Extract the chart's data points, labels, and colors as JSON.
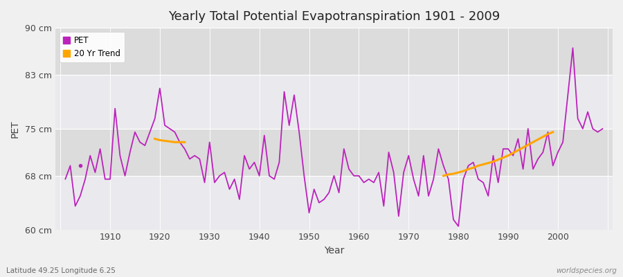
{
  "title": "Yearly Total Potential Evapotranspiration 1901 - 2009",
  "ylabel": "PET",
  "xlabel": "Year",
  "footnote_left": "Latitude 49.25 Longitude 6.25",
  "footnote_right": "worldspecies.org",
  "ylim": [
    60,
    90
  ],
  "yticks": [
    60,
    68,
    75,
    83,
    90
  ],
  "ytick_labels": [
    "60 cm",
    "68 cm",
    "75 cm",
    "83 cm",
    "90 cm"
  ],
  "pet_color": "#BB22BB",
  "trend_color": "#FFA500",
  "bg_color": "#F0F0F0",
  "plot_bg": "#F5F5F5",
  "band_dark": "#DCDCDC",
  "band_light": "#EAEAEE",
  "years": [
    1901,
    1902,
    1903,
    1904,
    1905,
    1906,
    1907,
    1908,
    1909,
    1910,
    1911,
    1912,
    1913,
    1914,
    1915,
    1916,
    1917,
    1918,
    1919,
    1920,
    1921,
    1922,
    1923,
    1924,
    1925,
    1926,
    1927,
    1928,
    1929,
    1930,
    1931,
    1932,
    1933,
    1934,
    1935,
    1936,
    1937,
    1938,
    1939,
    1940,
    1941,
    1942,
    1943,
    1944,
    1945,
    1946,
    1947,
    1948,
    1949,
    1950,
    1951,
    1952,
    1953,
    1954,
    1955,
    1956,
    1957,
    1958,
    1959,
    1960,
    1961,
    1962,
    1963,
    1964,
    1965,
    1966,
    1967,
    1968,
    1969,
    1970,
    1971,
    1972,
    1973,
    1974,
    1975,
    1976,
    1977,
    1978,
    1979,
    1980,
    1981,
    1982,
    1983,
    1984,
    1985,
    1986,
    1987,
    1988,
    1989,
    1990,
    1991,
    1992,
    1993,
    1994,
    1995,
    1996,
    1997,
    1998,
    1999,
    2000,
    2001,
    2002,
    2003,
    2004,
    2005,
    2006,
    2007,
    2008,
    2009
  ],
  "pet_values": [
    67.5,
    69.5,
    63.5,
    65.0,
    67.5,
    71.0,
    68.5,
    72.0,
    67.5,
    67.5,
    78.0,
    71.0,
    68.0,
    71.5,
    74.5,
    73.0,
    72.5,
    74.5,
    76.5,
    81.0,
    75.5,
    75.0,
    74.5,
    73.0,
    72.0,
    70.5,
    71.0,
    70.5,
    67.0,
    73.0,
    67.0,
    68.0,
    68.5,
    66.0,
    67.5,
    64.5,
    71.0,
    69.0,
    70.0,
    68.0,
    74.0,
    68.0,
    67.5,
    70.0,
    80.5,
    75.5,
    80.0,
    74.5,
    68.0,
    62.5,
    66.0,
    64.0,
    64.5,
    65.5,
    68.0,
    65.5,
    72.0,
    69.0,
    68.0,
    68.0,
    67.0,
    67.5,
    67.0,
    68.5,
    63.5,
    71.5,
    68.5,
    62.0,
    68.5,
    71.0,
    67.5,
    65.0,
    71.0,
    65.0,
    67.5,
    72.0,
    69.5,
    67.5,
    61.5,
    60.5,
    67.5,
    69.5,
    70.0,
    67.5,
    67.0,
    65.0,
    71.0,
    67.0,
    72.0,
    72.0,
    71.0,
    73.5,
    69.0,
    75.0,
    69.0,
    70.5,
    71.5,
    74.5,
    69.5,
    71.5,
    73.0,
    80.0,
    87.0,
    76.5,
    75.0,
    77.5,
    75.0,
    74.5,
    75.0
  ],
  "isolated_dot_year": 1904,
  "isolated_dot_val": 69.5,
  "trend_seg1_years": [
    1919,
    1920,
    1921,
    1922,
    1923,
    1924,
    1925
  ],
  "trend_seg1_vals": [
    73.5,
    73.3,
    73.2,
    73.1,
    73.0,
    73.0,
    73.0
  ],
  "trend_seg2_years": [
    1977,
    1978,
    1979,
    1980,
    1981,
    1982,
    1983,
    1984,
    1985,
    1986,
    1987,
    1988,
    1989,
    1990,
    1991,
    1992,
    1993,
    1994,
    1995,
    1996,
    1997,
    1998,
    1999
  ],
  "trend_seg2_vals": [
    68.0,
    68.2,
    68.3,
    68.5,
    68.7,
    69.0,
    69.2,
    69.5,
    69.7,
    69.9,
    70.1,
    70.4,
    70.7,
    71.0,
    71.4,
    71.8,
    72.2,
    72.6,
    73.0,
    73.4,
    73.8,
    74.2,
    74.5
  ]
}
